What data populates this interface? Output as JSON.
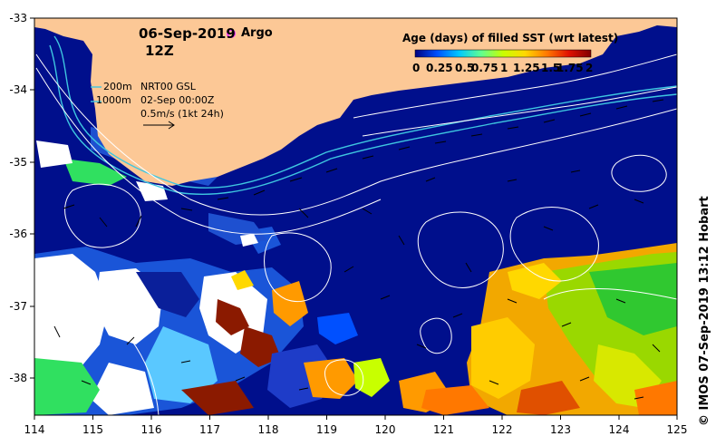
{
  "map": {
    "date": "06-Sep-2019",
    "time": "12Z",
    "argo_label": "Argo",
    "depth_200": "200m",
    "depth_1000": "1000m",
    "gsl_source": "NRT00 GSL",
    "gsl_time": "02-Sep 00:00Z",
    "vector_scale": "0.5m/s (1kt 24h)",
    "credit": "© IMOS 07-Sep-2019 13:12 Hobart",
    "colors": {
      "ocean": "#000f8c",
      "land": "#fcc896",
      "depth_contour": "#3ec6e0",
      "sla_contour": "#ffffff",
      "argo": "#ff33ff"
    }
  },
  "colorbar": {
    "title": "Age (days) of filled SST (wrt latest)",
    "tick_labels": [
      "0",
      "0.25",
      "0.5",
      "0.75",
      "1",
      "1.25",
      "1.5",
      "1.75",
      "2"
    ],
    "stops": [
      "#00007f",
      "#0050ff",
      "#00c8ff",
      "#60ff90",
      "#c8ff00",
      "#ffd800",
      "#ff7800",
      "#e01000",
      "#800000"
    ]
  },
  "axes": {
    "x_ticks": [
      "114",
      "115",
      "116",
      "117",
      "118",
      "119",
      "120",
      "121",
      "122",
      "123",
      "124",
      "125"
    ],
    "y_ticks": [
      "-33",
      "-34",
      "-35",
      "-36",
      "-37",
      "-38"
    ]
  }
}
